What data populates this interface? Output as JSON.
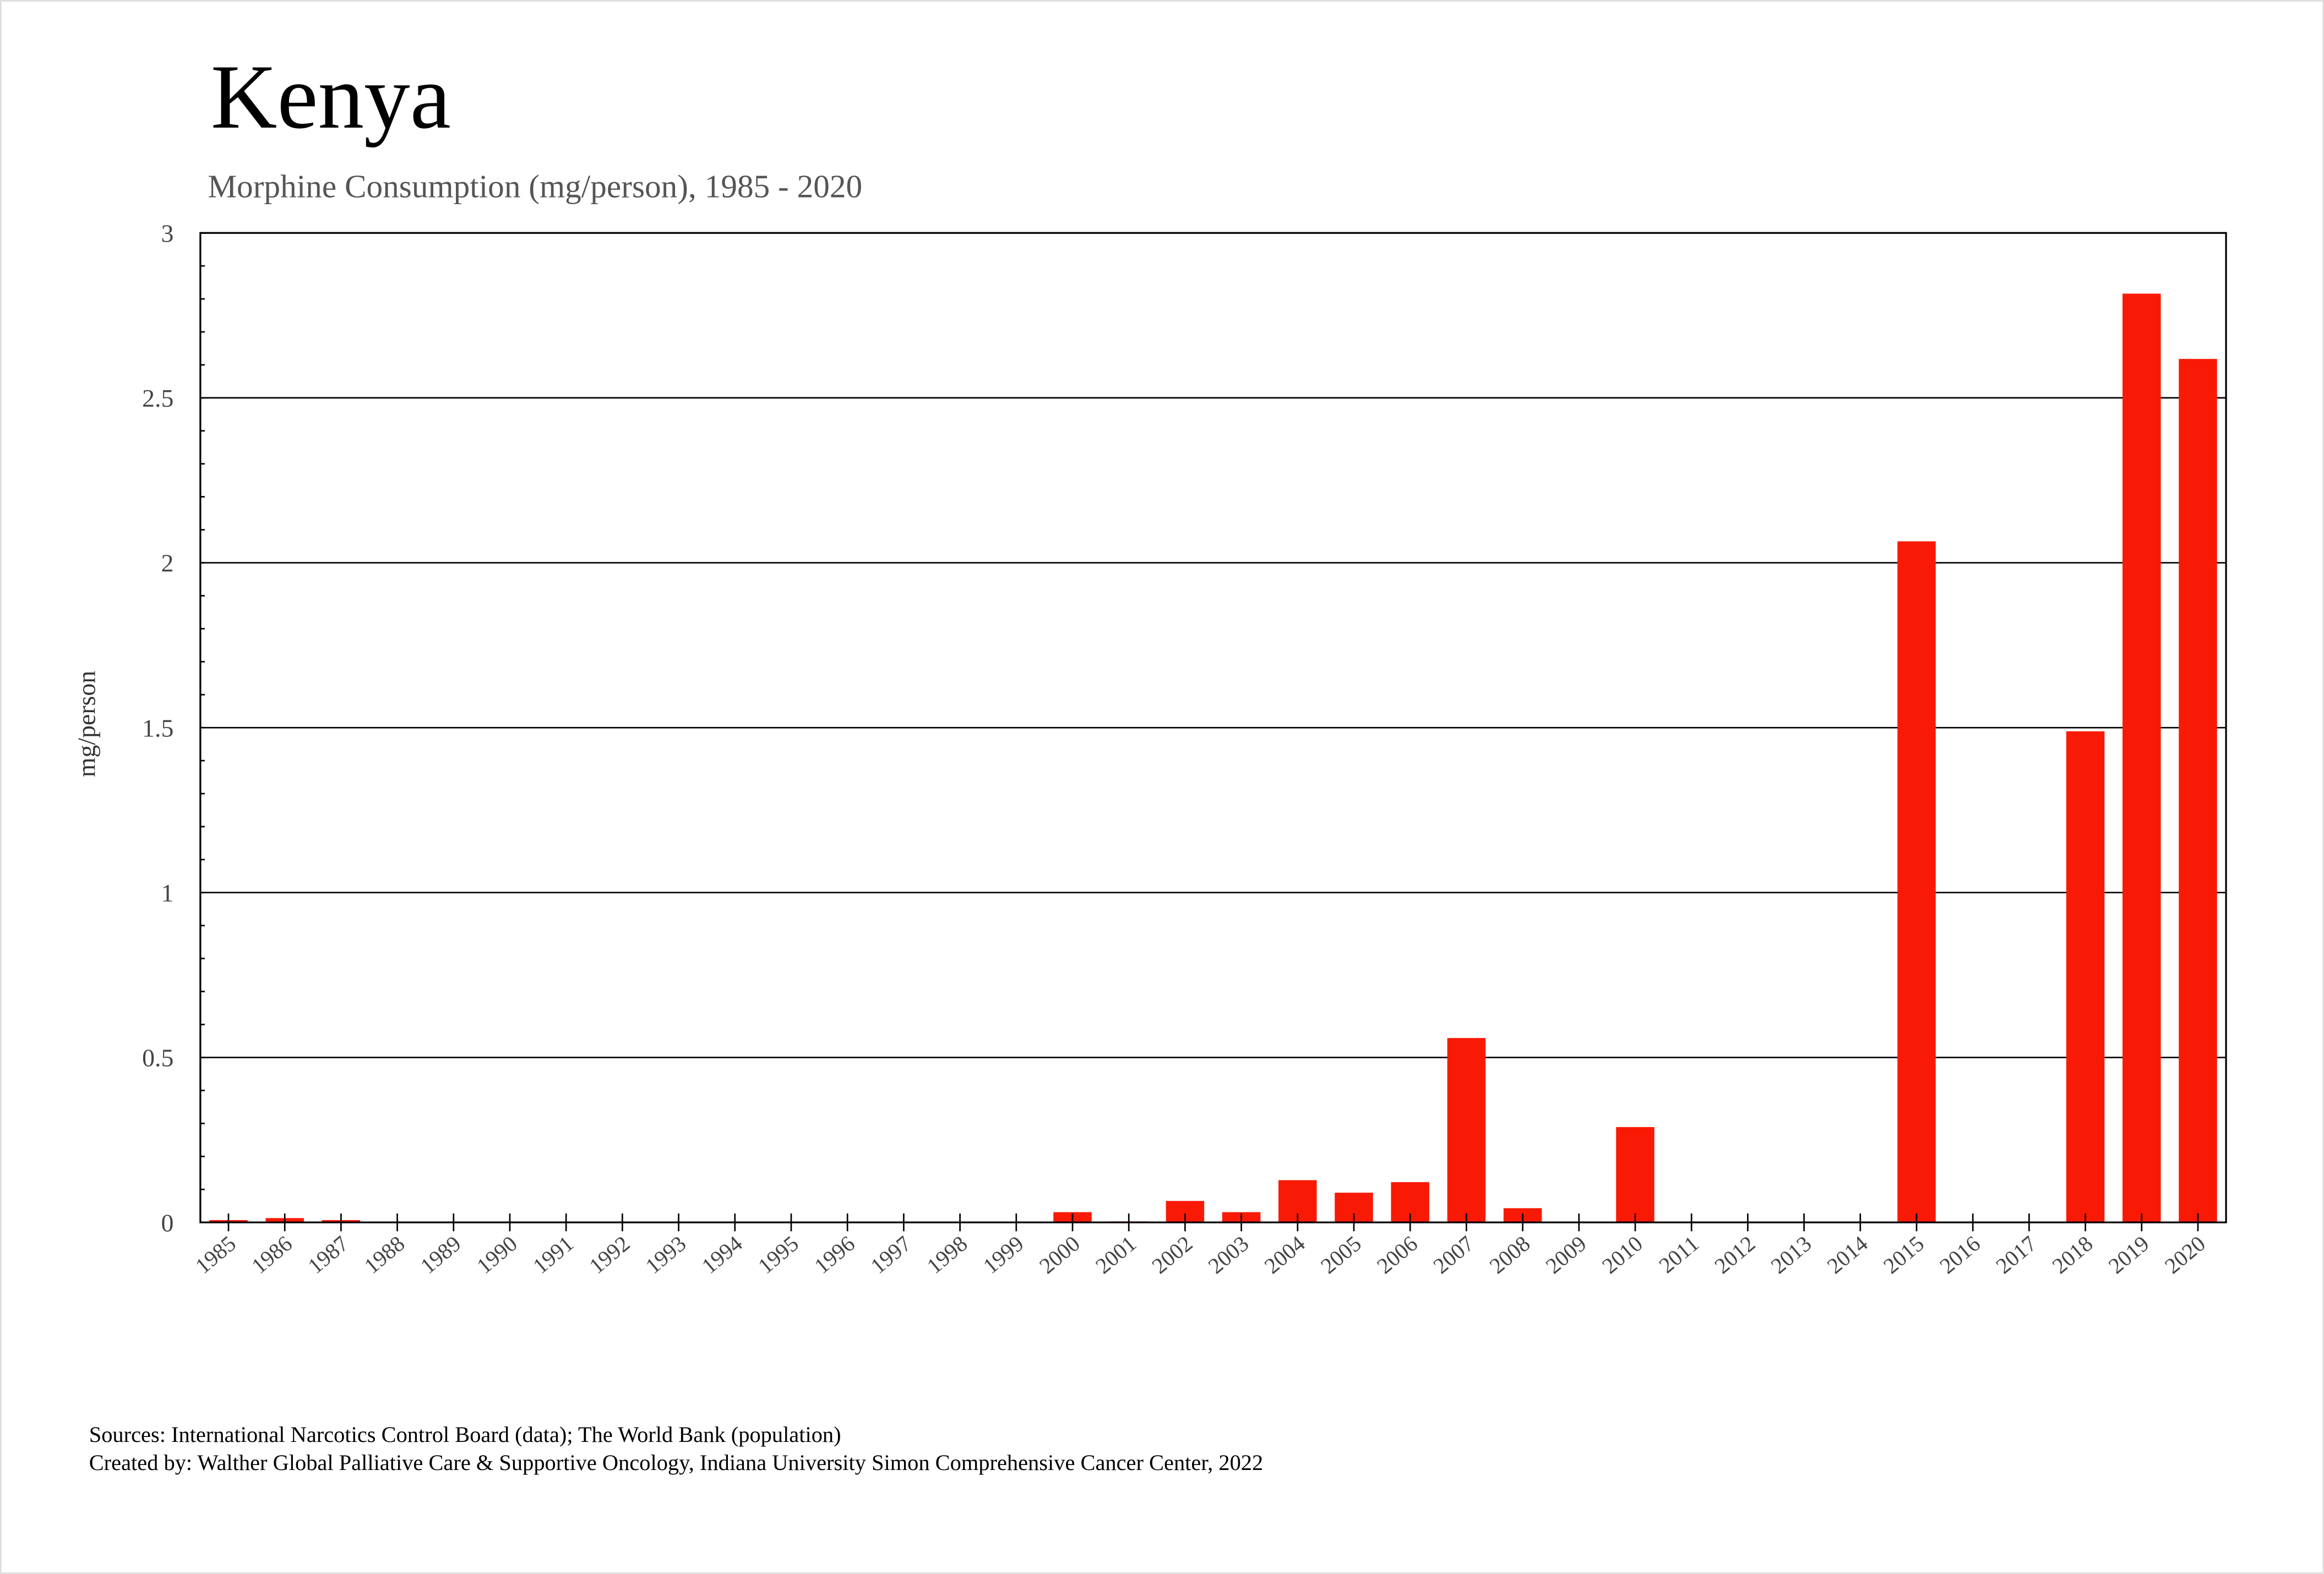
{
  "chart_data": {
    "type": "bar",
    "title": "Kenya",
    "subtitle": "Morphine Consumption (mg/person), 1985 - 2020",
    "xlabel": "",
    "ylabel": "mg/person",
    "ylim": [
      0,
      3
    ],
    "yticks": [
      "0",
      "0.5",
      "1",
      "1.5",
      "2",
      "2.5",
      "3"
    ],
    "grid": true,
    "bar_color": "#f91a05",
    "categories": [
      "1985",
      "1986",
      "1987",
      "1988",
      "1989",
      "1990",
      "1991",
      "1992",
      "1993",
      "1994",
      "1995",
      "1996",
      "1997",
      "1998",
      "1999",
      "2000",
      "2001",
      "2002",
      "2003",
      "2004",
      "2005",
      "2006",
      "2007",
      "2008",
      "2009",
      "2010",
      "2011",
      "2012",
      "2013",
      "2014",
      "2015",
      "2016",
      "2017",
      "2018",
      "2019",
      "2020"
    ],
    "values": [
      0.007,
      0.013,
      0.007,
      0,
      0,
      0,
      0,
      0,
      0,
      0,
      0,
      0,
      0,
      0,
      0,
      0.031,
      0.003,
      0.065,
      0.031,
      0.128,
      0.09,
      0.122,
      0.559,
      0.043,
      0,
      0.289,
      0,
      0,
      0,
      0,
      2.065,
      0,
      0,
      1.489,
      2.816,
      2.618
    ]
  },
  "footer": {
    "sources": "Sources: International Narcotics Control Board (data); The World Bank (population)",
    "created_by": "Created by: Walther  Global Palliative Care & Supportive Oncology, Indiana University Simon Comprehensive Cancer Center, 2022"
  }
}
